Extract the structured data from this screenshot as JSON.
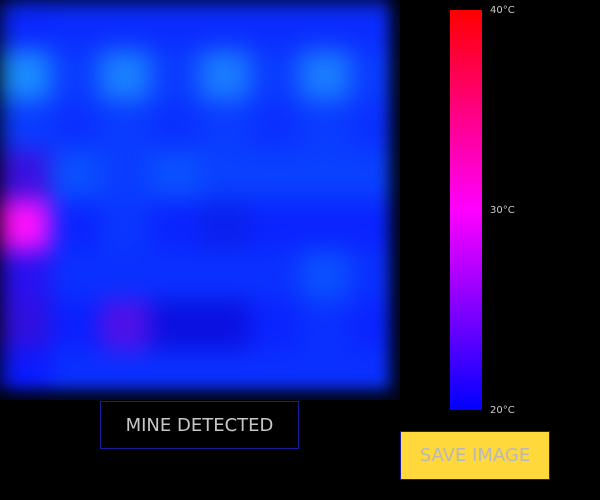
{
  "thermal": {
    "cells": [
      [
        "#0a28ff",
        "#0a2cff",
        "#0a2cff",
        "#0a2cff",
        "#0a2cff",
        "#0a2cff",
        "#0a2cff",
        "#0a2cff"
      ],
      [
        "#1a8cff",
        "#0a3cff",
        "#1a80ff",
        "#0a3cff",
        "#1a7cff",
        "#0a3cff",
        "#1a7cff",
        "#0a3cff"
      ],
      [
        "#0a3cff",
        "#0a30ff",
        "#0a3cff",
        "#0a30ff",
        "#0a3cff",
        "#0a30ff",
        "#0a3cff",
        "#0a30ff"
      ],
      [
        "#3a10e0",
        "#0a50ff",
        "#0a3cff",
        "#0a50ff",
        "#0a40ff",
        "#0a40ff",
        "#0a40ff",
        "#0a40ff"
      ],
      [
        "#ff10ff",
        "#0a24ff",
        "#0a36ff",
        "#0a24ff",
        "#0a20ee",
        "#0a24ff",
        "#0a24ff",
        "#0a24ff"
      ],
      [
        "#2a10f0",
        "#0a30ff",
        "#0a30ff",
        "#0a30ff",
        "#0a30ff",
        "#0a30ff",
        "#0a50ff",
        "#0a30ff"
      ],
      [
        "#3010e0",
        "#0a20ff",
        "#5010e8",
        "#0a10e0",
        "#0a10e0",
        "#0a24ff",
        "#0a30ff",
        "#0a24ff"
      ],
      [
        "#0a1aff",
        "#0a30ff",
        "#0a30ff",
        "#0a30ff",
        "#0a30ff",
        "#0a30ff",
        "#0a30ff",
        "#0a30ff"
      ]
    ]
  },
  "scale": {
    "max_label": "40°C",
    "mid_label": "30°C",
    "min_label": "20°C",
    "colors": {
      "hot": "#ff0000",
      "mid": "#ff00ff",
      "cold": "#0000ff"
    }
  },
  "status": {
    "text": "MINE DETECTED"
  },
  "actions": {
    "save_label": "SAVE IMAGE"
  }
}
